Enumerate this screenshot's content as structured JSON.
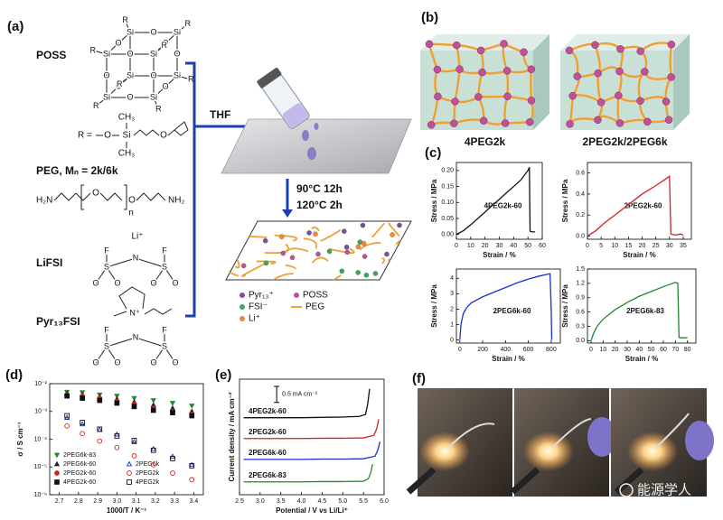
{
  "panels": {
    "a": {
      "label": "(a)",
      "poss": "POSS",
      "poss_atoms": {
        "si": "Si",
        "o": "O",
        "r": "R"
      },
      "r_group": [
        "R =",
        "O",
        "Si",
        "CH₃",
        "CH₃",
        "O"
      ],
      "peg_name": "PEG, Mₙ = 2k/6k",
      "peg_formula": [
        "H₂N",
        "O",
        "O",
        "n",
        "NH₂"
      ],
      "lifsi": "LiFSI",
      "li": "Li⁺",
      "fsi_atoms": [
        "F",
        "S",
        "N",
        "S",
        "F",
        "O",
        "O",
        "O",
        "O"
      ],
      "pyr": "Pyr₁₃FSI",
      "pyr_n": "N⁺",
      "thf": "THF",
      "conditions": [
        "90°C 12h",
        "120°C 2h"
      ],
      "legend": [
        "Pyr₁₃⁺",
        "POSS",
        "FSI⁻",
        "PEG",
        "Li⁺"
      ]
    },
    "b": {
      "label": "(b)",
      "names": [
        "4PEG2k",
        "2PEG2k/2PEG6k"
      ]
    },
    "c": {
      "label": "(c)"
    },
    "d": {
      "label": "(d)"
    },
    "e": {
      "label": "(e)"
    },
    "f": {
      "label": "(f)"
    },
    "watermark": "能源学人"
  },
  "chart_data": [
    {
      "type": "line",
      "annotation": "4PEG2k-60",
      "x_label": "Strain / %",
      "y_label": "Stress / MPa",
      "xlim": [
        0,
        60
      ],
      "ylim": [
        -0.015,
        0.225
      ],
      "xticks": [
        0,
        10,
        20,
        30,
        40,
        50,
        60
      ],
      "yticks": [
        {
          "value": 0,
          "label": "0.00"
        },
        0.05,
        {
          "value": 0.1,
          "label": "0.10"
        },
        0.15,
        {
          "value": 0.2,
          "label": "0.20"
        }
      ],
      "series": [
        {
          "color": "#111111",
          "x": [
            0,
            5,
            10,
            15,
            20,
            25,
            30,
            35,
            40,
            45,
            50,
            51,
            51.5,
            53,
            55
          ],
          "values": [
            0,
            0.012,
            0.03,
            0.05,
            0.07,
            0.09,
            0.11,
            0.13,
            0.15,
            0.17,
            0.2,
            0.21,
            0.01,
            0.008,
            0.008
          ]
        }
      ]
    },
    {
      "type": "line",
      "annotation": "2PEG2k-60",
      "x_label": "Strain / %",
      "y_label": "Stress / MPa",
      "xlim": [
        0,
        38
      ],
      "ylim": [
        -0.03,
        0.7
      ],
      "xticks": [
        0,
        5,
        10,
        15,
        20,
        25,
        30,
        35
      ],
      "yticks": [
        {
          "value": 0,
          "label": "0.0"
        },
        0.2,
        0.4,
        0.6
      ],
      "series": [
        {
          "color": "#d42020",
          "x": [
            0,
            3,
            6,
            10,
            15,
            20,
            25,
            29,
            30,
            30.5,
            32,
            34,
            35
          ],
          "values": [
            0,
            0.05,
            0.12,
            0.2,
            0.3,
            0.4,
            0.48,
            0.55,
            0.57,
            0.02,
            0.01,
            0.02,
            0.01
          ]
        }
      ]
    },
    {
      "type": "line",
      "annotation": "2PEG6k-60",
      "x_label": "Strain / %",
      "y_label": "Stress / MPa",
      "xlim": [
        -30,
        880
      ],
      "ylim": [
        -0.2,
        4.6
      ],
      "xticks": [
        0,
        200,
        400,
        600,
        800
      ],
      "yticks": [
        0,
        1,
        2,
        3,
        4
      ],
      "series": [
        {
          "color": "#1a2fd0",
          "x": [
            0,
            10,
            30,
            60,
            100,
            200,
            300,
            400,
            500,
            600,
            700,
            790,
            800,
            805
          ],
          "values": [
            0,
            1,
            1.7,
            2.1,
            2.4,
            2.8,
            3.1,
            3.4,
            3.7,
            3.95,
            4.15,
            4.3,
            2,
            0
          ]
        }
      ]
    },
    {
      "type": "line",
      "annotation": "2PEG6k-83",
      "x_label": "Strain / %",
      "y_label": "Stress / MPa",
      "xlim": [
        -3,
        87
      ],
      "ylim": [
        -0.05,
        1.5
      ],
      "xticks": [
        0,
        10,
        20,
        30,
        40,
        50,
        60,
        70,
        80
      ],
      "yticks": [
        {
          "value": 0,
          "label": "0.0"
        },
        0.3,
        0.6,
        0.9,
        1.2,
        1.5
      ],
      "series": [
        {
          "color": "#1e8a2a",
          "x": [
            0,
            2,
            5,
            10,
            20,
            30,
            40,
            50,
            60,
            70,
            72,
            73,
            75,
            80
          ],
          "values": [
            0,
            0.15,
            0.3,
            0.45,
            0.65,
            0.8,
            0.93,
            1.03,
            1.13,
            1.22,
            1.2,
            0.07,
            0.06,
            0.06
          ]
        }
      ]
    },
    {
      "type": "scatter",
      "log_y": true,
      "x_label": "1000/T / K⁻¹",
      "y_label": "σ / S cm⁻¹",
      "xlim": [
        2.65,
        3.45
      ],
      "ylim": [
        1e-06,
        0.01
      ],
      "xticks": [
        2.7,
        2.8,
        2.9,
        {
          "value": 3,
          "label": "3.0"
        },
        3.1,
        3.2,
        3.3,
        3.4
      ],
      "yticks": [
        {
          "value": 1e-06,
          "label": "10⁻⁶"
        },
        {
          "value": 1e-05,
          "label": "10⁻⁵"
        },
        {
          "value": 0.0001,
          "label": "10⁻⁴"
        },
        {
          "value": 0.001,
          "label": "10⁻³"
        },
        {
          "value": 0.01,
          "label": "10⁻²"
        }
      ],
      "x": [
        2.74,
        2.82,
        2.91,
        3.0,
        3.09,
        3.19,
        3.29,
        3.39
      ],
      "series": [
        {
          "name": "2PEG6k-83",
          "color": "#1e8a2a",
          "marker": "triangle-down",
          "filled": true,
          "values": [
            0.005,
            0.0048,
            0.004,
            0.0036,
            0.003,
            0.0025,
            0.002,
            0.0016
          ]
        },
        {
          "name": "2PEG6k-60",
          "color": "#222222",
          "marker": "triangle",
          "filled": true,
          "values": [
            0.0045,
            0.004,
            0.0033,
            0.0028,
            0.0022,
            0.0017,
            0.0013,
            0.001
          ]
        },
        {
          "name": "2PEG2k-60",
          "color": "#d42020",
          "marker": "circle",
          "filled": true,
          "values": [
            0.004,
            0.0036,
            0.003,
            0.0023,
            0.0018,
            0.0013,
            0.001,
            0.0008
          ]
        },
        {
          "name": "4PEG2k-60",
          "color": "#111111",
          "marker": "square",
          "filled": true,
          "values": [
            0.0036,
            0.003,
            0.0025,
            0.002,
            0.0015,
            0.0011,
            0.0009,
            0.0007
          ]
        },
        {
          "name": "2PEG6k",
          "color": "#1a2fd0",
          "marker": "triangle",
          "filled": false,
          "values": [
            0.0006,
            0.00035,
            0.00022,
            0.00015,
            8e-05,
            4.5e-05,
            2.4e-05,
            1.2e-05
          ]
        },
        {
          "name": "2PEG2k",
          "color": "#d42020",
          "marker": "circle",
          "filled": false,
          "values": [
            0.0003,
            0.00016,
            8.5e-05,
            5e-05,
            2.5e-05,
            1.2e-05,
            6e-06,
            3.5e-06
          ]
        },
        {
          "name": "4PEG2k",
          "color": "#111111",
          "marker": "square",
          "filled": false,
          "values": [
            0.0007,
            0.0004,
            0.00023,
            0.00013,
            9e-05,
            4e-05,
            2e-05,
            1.1e-05
          ]
        }
      ]
    },
    {
      "type": "line",
      "x_label": "Potential / V vs Li/Li⁺",
      "y_label": "Current density / mA cm⁻²",
      "xlim": [
        2.5,
        6.0
      ],
      "ylim": [
        0,
        3.6
      ],
      "xticks": [
        2.5,
        {
          "value": 3,
          "label": "3.0"
        },
        3.5,
        {
          "value": 4,
          "label": "4.0"
        },
        4.5,
        {
          "value": 5,
          "label": "5.0"
        },
        5.5,
        {
          "value": 6,
          "label": "6.0"
        }
      ],
      "scale_bar": {
        "value": 0.5,
        "label": "0.5 mA cm⁻²"
      },
      "series": [
        {
          "name": "4PEG2k-60",
          "color": "#111111",
          "x": [
            2.6,
            3,
            3.5,
            4,
            4.5,
            5,
            5.4,
            5.55,
            5.6,
            5.65
          ],
          "values": [
            2.4,
            2.4,
            2.4,
            2.4,
            2.41,
            2.42,
            2.44,
            2.5,
            2.8,
            3.3
          ]
        },
        {
          "name": "2PEG2k-60",
          "color": "#d42020",
          "x": [
            2.6,
            3,
            3.5,
            4,
            4.5,
            5,
            5.5,
            5.75,
            5.82,
            5.87
          ],
          "values": [
            1.75,
            1.75,
            1.75,
            1.75,
            1.76,
            1.76,
            1.77,
            1.85,
            2.05,
            2.35
          ]
        },
        {
          "name": "2PEG6k-60",
          "color": "#1a2fd0",
          "x": [
            2.6,
            3,
            3.5,
            4,
            4.5,
            5,
            5.5,
            5.78,
            5.85,
            5.9
          ],
          "values": [
            1.1,
            1.1,
            1.1,
            1.1,
            1.11,
            1.11,
            1.12,
            1.2,
            1.4,
            1.65
          ]
        },
        {
          "name": "2PEG6k-83",
          "color": "#1e8a2a",
          "x": [
            2.6,
            3,
            3.5,
            4,
            4.5,
            5,
            5.5,
            5.62,
            5.68,
            5.72
          ],
          "values": [
            0.4,
            0.4,
            0.4,
            0.4,
            0.41,
            0.41,
            0.42,
            0.5,
            0.7,
            0.95
          ]
        }
      ]
    }
  ]
}
